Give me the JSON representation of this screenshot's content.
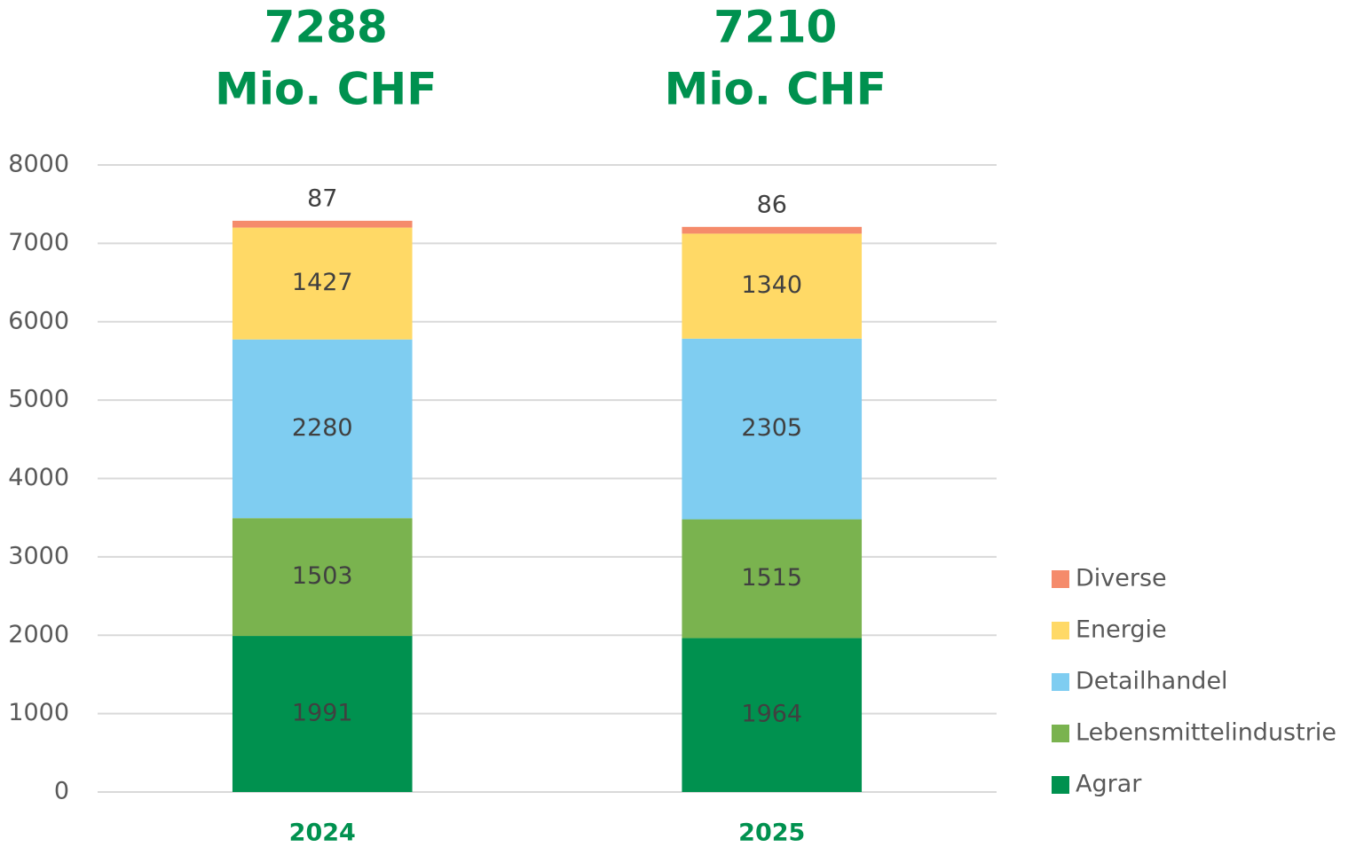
{
  "chart_data": {
    "type": "stacked_bar",
    "annotations": [
      [
        "7288",
        "Mio. CHF"
      ],
      [
        "7210",
        "Mio. CHF"
      ]
    ],
    "categories": [
      "2024",
      "2025"
    ],
    "series": [
      {
        "name": "Agrar",
        "color": "#00914f",
        "values": [
          1991,
          1964
        ]
      },
      {
        "name": "Lebensmittelindustrie",
        "color": "#7ab34f",
        "values": [
          1503,
          1515
        ]
      },
      {
        "name": "Detailhandel",
        "color": "#7fcdf1",
        "values": [
          2280,
          2305
        ]
      },
      {
        "name": "Energie",
        "color": "#ffd966",
        "values": [
          1427,
          1340
        ]
      },
      {
        "name": "Diverse",
        "color": "#f58b6b",
        "values": [
          87,
          86
        ]
      }
    ],
    "ylim": [
      0,
      8000
    ],
    "yticks": [
      0,
      1000,
      2000,
      3000,
      4000,
      5000,
      6000,
      7000,
      8000
    ],
    "grid": true,
    "legend": "right"
  }
}
